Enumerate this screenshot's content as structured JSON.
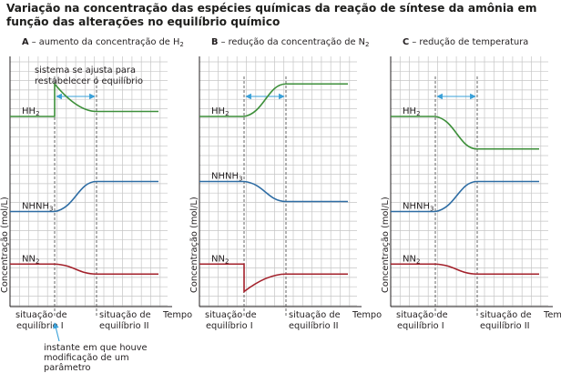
{
  "title": "Variação na concentração das espécies químicas da reação de síntese da amônia em função das alterações no equilíbrio químico",
  "colors": {
    "H2": "#3d8f3a",
    "NH3": "#2e6da4",
    "N2": "#a3212b",
    "grid": "#c6c6c6",
    "arrow": "#3aa0d8"
  },
  "axis": {
    "ylabel": "Concentração (mol/L)",
    "xlabel": "Tempo",
    "tick_left": [
      "situação de",
      "equilíbrio I"
    ],
    "tick_right": [
      "situação de",
      "equilíbrio II"
    ]
  },
  "annotations": {
    "system_adjusts": [
      "sistema se ajusta para",
      "restabelecer o equilíbrio"
    ],
    "instant": [
      "instante em que houve",
      "modificação de um",
      "parâmetro"
    ]
  },
  "panels": [
    {
      "letter": "A",
      "caption": " – aumento da concentração de H",
      "caption_sub": "2",
      "changed_species": "H2",
      "curves": {
        "H2": {
          "label": "H",
          "sub": "2",
          "before": 0.76,
          "jump": 0.89,
          "after": 0.78,
          "shape": "decay"
        },
        "NH3": {
          "label": "NH",
          "sub": "3",
          "before": 0.38,
          "after": 0.5,
          "shape": "rise"
        },
        "N2": {
          "label": "N",
          "sub": "2",
          "before": 0.17,
          "after": 0.13,
          "shape": "fall"
        }
      }
    },
    {
      "letter": "B",
      "caption": " – redução da concentração de N",
      "caption_sub": "2",
      "changed_species": "N2",
      "curves": {
        "H2": {
          "label": "H",
          "sub": "2",
          "before": 0.76,
          "after": 0.89,
          "shape": "rise"
        },
        "NH3": {
          "label": "NH",
          "sub": "3",
          "before": 0.5,
          "after": 0.42,
          "shape": "fall"
        },
        "N2": {
          "label": "N",
          "sub": "2",
          "before": 0.17,
          "jump": 0.06,
          "after": 0.13,
          "shape": "recover"
        }
      }
    },
    {
      "letter": "C",
      "caption": " – redução de temperatura",
      "caption_sub": "",
      "changed_species": "temperature",
      "curves": {
        "H2": {
          "label": "H",
          "sub": "2",
          "before": 0.76,
          "after": 0.63,
          "shape": "fall"
        },
        "NH3": {
          "label": "NH",
          "sub": "3",
          "before": 0.38,
          "after": 0.5,
          "shape": "rise"
        },
        "N2": {
          "label": "N",
          "sub": "2",
          "before": 0.17,
          "after": 0.13,
          "shape": "fall"
        }
      }
    }
  ]
}
